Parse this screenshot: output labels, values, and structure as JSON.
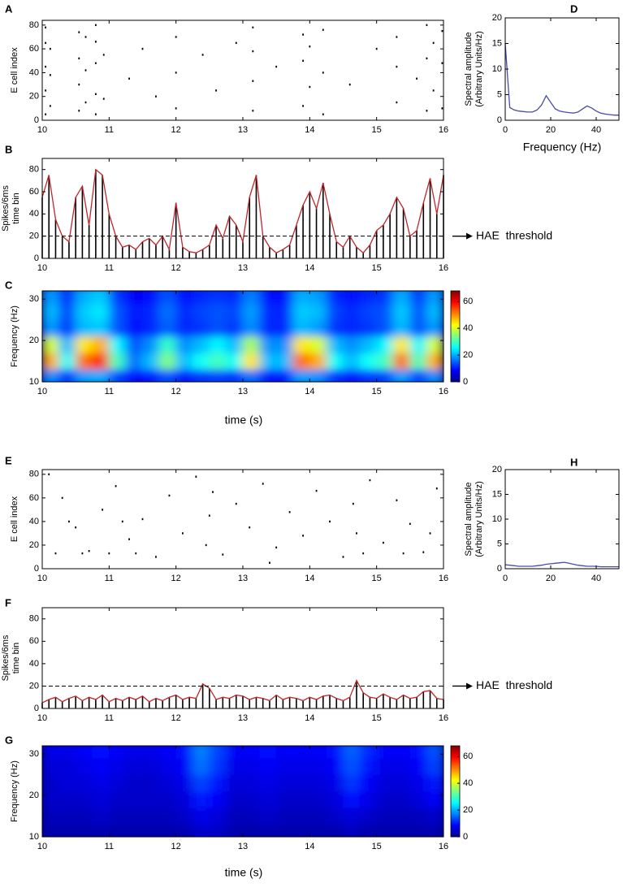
{
  "chart_data": [
    {
      "panel": "A",
      "type": "scatter",
      "ylabel": [
        "E cell index"
      ],
      "color": "#000000",
      "x": [
        10.05,
        10.05,
        10.05,
        10.05,
        10.05,
        10.12,
        10.12,
        10.12,
        10.55,
        10.55,
        10.55,
        10.55,
        10.65,
        10.65,
        10.65,
        10.8,
        10.8,
        10.8,
        10.8,
        10.8,
        10.92,
        10.92,
        11.3,
        11.5,
        11.7,
        12.0,
        12.0,
        12.0,
        12.4,
        12.6,
        12.9,
        13.15,
        13.15,
        13.15,
        13.15,
        13.5,
        13.9,
        13.9,
        13.9,
        14.0,
        14.0,
        14.2,
        14.2,
        14.2,
        14.6,
        15.0,
        15.3,
        15.3,
        15.3,
        15.6,
        15.75,
        15.75,
        15.75,
        15.85,
        15.85,
        15.98,
        15.98,
        15.98
      ],
      "values": [
        5,
        25,
        45,
        65,
        78,
        12,
        38,
        60,
        8,
        30,
        52,
        74,
        15,
        42,
        70,
        5,
        22,
        48,
        66,
        80,
        18,
        55,
        35,
        60,
        20,
        10,
        40,
        70,
        55,
        25,
        65,
        8,
        33,
        58,
        78,
        45,
        12,
        50,
        72,
        28,
        62,
        5,
        40,
        76,
        30,
        60,
        15,
        45,
        70,
        35,
        8,
        52,
        80,
        25,
        65,
        10,
        48,
        75
      ],
      "xlim": [
        10,
        16
      ],
      "xticks": [
        10,
        11,
        12,
        13,
        14,
        15,
        16
      ],
      "ylim": [
        0,
        84
      ],
      "yticks": [
        0,
        20,
        40,
        60,
        80
      ]
    },
    {
      "panel": "D",
      "type": "line",
      "ylabel": [
        "Spectral amplitude",
        "(Arbitrary Units/Hz)"
      ],
      "xlabel": "Frequency (Hz)",
      "color": "#4a4ab0",
      "x": [
        0,
        2,
        4,
        6,
        8,
        10,
        12,
        14,
        16,
        18,
        20,
        22,
        24,
        26,
        28,
        30,
        32,
        34,
        36,
        38,
        40,
        42,
        44,
        46,
        48,
        50
      ],
      "values": [
        15,
        2.5,
        2,
        1.8,
        1.7,
        1.6,
        1.6,
        2,
        3,
        4.8,
        3.5,
        2.2,
        1.8,
        1.6,
        1.5,
        1.4,
        1.6,
        2.2,
        2.8,
        2.4,
        1.8,
        1.4,
        1.2,
        1.1,
        1,
        1
      ],
      "xlim": [
        0,
        50
      ],
      "xticks": [
        0,
        20,
        40
      ],
      "ylim": [
        0,
        20
      ],
      "yticks": [
        0,
        5,
        10,
        15,
        20
      ]
    },
    {
      "panel": "B",
      "type": "line",
      "ylabel": [
        "Spikes/6ms",
        "time bin"
      ],
      "color": "#c0262b",
      "stem_color": "#000000",
      "threshold": 20,
      "threshold_label": "HAE  threshold",
      "x": [
        10,
        10.1,
        10.2,
        10.3,
        10.4,
        10.5,
        10.6,
        10.7,
        10.8,
        10.9,
        11,
        11.1,
        11.2,
        11.3,
        11.4,
        11.5,
        11.6,
        11.7,
        11.8,
        11.9,
        12,
        12.1,
        12.2,
        12.3,
        12.4,
        12.5,
        12.6,
        12.7,
        12.8,
        12.9,
        13,
        13.1,
        13.2,
        13.3,
        13.4,
        13.5,
        13.6,
        13.7,
        13.8,
        13.9,
        14,
        14.1,
        14.2,
        14.3,
        14.4,
        14.5,
        14.6,
        14.7,
        14.8,
        14.9,
        15,
        15.1,
        15.2,
        15.3,
        15.4,
        15.5,
        15.6,
        15.7,
        15.8,
        15.9,
        16
      ],
      "values": [
        55,
        75,
        35,
        20,
        15,
        55,
        65,
        30,
        80,
        75,
        40,
        20,
        10,
        12,
        8,
        15,
        18,
        12,
        20,
        8,
        50,
        10,
        6,
        5,
        8,
        12,
        30,
        18,
        38,
        30,
        15,
        55,
        75,
        20,
        10,
        5,
        8,
        12,
        30,
        48,
        60,
        45,
        68,
        40,
        15,
        10,
        20,
        10,
        5,
        12,
        25,
        30,
        40,
        55,
        45,
        20,
        25,
        50,
        72,
        40,
        75
      ],
      "xlim": [
        10,
        16
      ],
      "xticks": [
        10,
        11,
        12,
        13,
        14,
        15,
        16
      ],
      "ylim": [
        0,
        90
      ],
      "yticks": [
        0,
        20,
        40,
        60,
        80
      ]
    },
    {
      "panel": "C",
      "type": "heatmap",
      "ylabel": [
        "Frequency (Hz)"
      ],
      "xlabel": "time (s)",
      "colormap": "jet",
      "x": [
        10.125,
        10.375,
        10.625,
        10.875,
        11.125,
        11.375,
        11.625,
        11.875,
        12.125,
        12.375,
        12.625,
        12.875,
        13.125,
        13.375,
        13.625,
        13.875,
        14.125,
        14.375,
        14.625,
        14.875,
        15.125,
        15.375,
        15.625,
        15.875
      ],
      "y": [
        11,
        15,
        19,
        23,
        27,
        31
      ],
      "z": [
        [
          18,
          12,
          19,
          20,
          13,
          9,
          10,
          14,
          10,
          12,
          13,
          12,
          16,
          10,
          10,
          19,
          18,
          12,
          10,
          12,
          13,
          19,
          13,
          18
        ],
        [
          48,
          26,
          52,
          57,
          30,
          16,
          21,
          34,
          21,
          26,
          30,
          26,
          44,
          21,
          21,
          52,
          48,
          26,
          21,
          26,
          30,
          52,
          30,
          48
        ],
        [
          40,
          21,
          44,
          48,
          25,
          14,
          18,
          29,
          18,
          21,
          25,
          21,
          37,
          18,
          18,
          44,
          40,
          21,
          18,
          21,
          25,
          44,
          25,
          40
        ],
        [
          19,
          12,
          21,
          22,
          14,
          9,
          11,
          15,
          11,
          12,
          14,
          12,
          18,
          11,
          11,
          21,
          19,
          12,
          11,
          12,
          14,
          21,
          14,
          19
        ],
        [
          21,
          13,
          22,
          24,
          14,
          10,
          11,
          16,
          11,
          13,
          14,
          13,
          19,
          11,
          11,
          22,
          21,
          13,
          11,
          13,
          14,
          22,
          14,
          21
        ],
        [
          19,
          11,
          20,
          22,
          12,
          8,
          9,
          14,
          9,
          11,
          12,
          11,
          17,
          9,
          9,
          20,
          19,
          11,
          9,
          11,
          12,
          20,
          12,
          19
        ]
      ],
      "zlim": [
        0,
        68
      ],
      "zticks": [
        0,
        20,
        40,
        60
      ],
      "xlim": [
        10,
        16
      ],
      "xticks": [
        10,
        11,
        12,
        13,
        14,
        15,
        16
      ],
      "ylim": [
        10,
        32
      ],
      "yticks": [
        10,
        20,
        30
      ]
    },
    {
      "panel": "E",
      "type": "scatter",
      "ylabel": [
        "E cell index"
      ],
      "color": "#000000",
      "x": [
        10.1,
        10.3,
        10.5,
        10.7,
        10.9,
        11.1,
        11.3,
        11.5,
        11.7,
        11.9,
        12.1,
        12.3,
        12.45,
        12.5,
        12.55,
        12.7,
        12.9,
        13.1,
        13.3,
        13.5,
        13.7,
        13.9,
        14.1,
        14.3,
        14.5,
        14.65,
        14.7,
        14.9,
        15.1,
        15.3,
        15.5,
        15.7,
        15.9,
        10.2,
        10.6,
        11,
        11.4,
        14.8,
        15.4,
        10.4,
        11.2,
        13.4,
        15.8
      ],
      "values": [
        80,
        60,
        35,
        15,
        50,
        70,
        25,
        42,
        10,
        62,
        30,
        78,
        20,
        45,
        65,
        12,
        55,
        35,
        72,
        18,
        48,
        28,
        66,
        40,
        10,
        55,
        30,
        75,
        22,
        58,
        38,
        14,
        68,
        13,
        13,
        13,
        13,
        13,
        13,
        40,
        40,
        5,
        30
      ],
      "xlim": [
        10,
        16
      ],
      "xticks": [
        10,
        11,
        12,
        13,
        14,
        15,
        16
      ],
      "ylim": [
        0,
        84
      ],
      "yticks": [
        0,
        20,
        40,
        60,
        80
      ]
    },
    {
      "panel": "H",
      "type": "line",
      "ylabel": [
        "Spectral amplitude",
        "(Arbitrary Units/Hz)"
      ],
      "color": "#4a4ab0",
      "x": [
        0,
        2,
        4,
        6,
        8,
        10,
        12,
        14,
        16,
        18,
        20,
        22,
        24,
        26,
        28,
        30,
        32,
        34,
        36,
        38,
        40,
        42,
        44,
        46,
        48,
        50
      ],
      "values": [
        0.8,
        0.7,
        0.6,
        0.5,
        0.5,
        0.5,
        0.5,
        0.6,
        0.7,
        0.9,
        1,
        1.1,
        1.2,
        1.3,
        1.1,
        0.9,
        0.7,
        0.6,
        0.5,
        0.5,
        0.5,
        0.4,
        0.4,
        0.4,
        0.4,
        0.4
      ],
      "xlim": [
        0,
        50
      ],
      "xticks": [
        0,
        20,
        40
      ],
      "ylim": [
        0,
        20
      ],
      "yticks": [
        0,
        5,
        10,
        15,
        20
      ]
    },
    {
      "panel": "F",
      "type": "line",
      "ylabel": [
        "Spikes/6ms",
        "time bin"
      ],
      "color": "#c0262b",
      "stem_color": "#000000",
      "threshold": 20,
      "threshold_label": "HAE  threshold",
      "x": [
        10,
        10.1,
        10.2,
        10.3,
        10.4,
        10.5,
        10.6,
        10.7,
        10.8,
        10.9,
        11,
        11.1,
        11.2,
        11.3,
        11.4,
        11.5,
        11.6,
        11.7,
        11.8,
        11.9,
        12,
        12.1,
        12.2,
        12.3,
        12.4,
        12.5,
        12.6,
        12.7,
        12.8,
        12.9,
        13,
        13.1,
        13.2,
        13.3,
        13.4,
        13.5,
        13.6,
        13.7,
        13.8,
        13.9,
        14,
        14.1,
        14.2,
        14.3,
        14.4,
        14.5,
        14.6,
        14.7,
        14.8,
        14.9,
        15,
        15.1,
        15.2,
        15.3,
        15.4,
        15.5,
        15.6,
        15.7,
        15.8,
        15.9,
        16
      ],
      "values": [
        5,
        8,
        10,
        6,
        9,
        11,
        7,
        10,
        8,
        12,
        6,
        9,
        7,
        10,
        8,
        11,
        6,
        9,
        7,
        10,
        12,
        8,
        10,
        9,
        22,
        18,
        8,
        10,
        9,
        12,
        11,
        8,
        10,
        9,
        7,
        12,
        8,
        10,
        9,
        7,
        10,
        8,
        11,
        12,
        9,
        7,
        10,
        25,
        14,
        10,
        9,
        13,
        10,
        8,
        12,
        9,
        10,
        15,
        16,
        9,
        8
      ],
      "xlim": [
        10,
        16
      ],
      "xticks": [
        10,
        11,
        12,
        13,
        14,
        15,
        16
      ],
      "ylim": [
        0,
        90
      ],
      "yticks": [
        0,
        20,
        40,
        60,
        80
      ]
    },
    {
      "panel": "G",
      "type": "heatmap",
      "ylabel": [
        "Frequency (Hz)"
      ],
      "xlabel": "time (s)",
      "colormap": "jet",
      "x": [
        10.125,
        10.375,
        10.625,
        10.875,
        11.125,
        11.375,
        11.625,
        11.875,
        12.125,
        12.375,
        12.625,
        12.875,
        13.125,
        13.375,
        13.625,
        13.875,
        14.125,
        14.375,
        14.625,
        14.875,
        15.125,
        15.375,
        15.625,
        15.875
      ],
      "y": [
        11,
        15,
        19,
        23,
        27,
        31
      ],
      "z": [
        [
          3,
          3,
          3,
          3,
          3,
          3,
          3,
          3,
          3,
          5,
          5,
          3,
          3,
          3,
          3,
          3,
          3,
          3,
          4,
          3,
          3,
          3,
          3,
          3
        ],
        [
          4,
          4,
          4,
          5,
          4,
          4,
          4,
          4,
          5,
          7,
          6,
          4,
          4,
          5,
          4,
          4,
          4,
          5,
          6,
          5,
          4,
          4,
          4,
          5
        ],
        [
          5,
          5,
          5,
          6,
          5,
          5,
          5,
          5,
          6,
          10,
          8,
          5,
          5,
          6,
          5,
          5,
          5,
          6,
          9,
          7,
          5,
          5,
          6,
          8
        ],
        [
          5,
          6,
          6,
          7,
          6,
          5,
          5,
          6,
          7,
          13,
          10,
          6,
          6,
          7,
          6,
          6,
          6,
          7,
          12,
          8,
          6,
          6,
          7,
          10
        ],
        [
          6,
          6,
          7,
          8,
          7,
          6,
          6,
          7,
          8,
          16,
          12,
          7,
          7,
          8,
          7,
          7,
          7,
          8,
          14,
          10,
          7,
          7,
          8,
          13
        ],
        [
          7,
          7,
          8,
          9,
          8,
          7,
          7,
          8,
          9,
          17,
          13,
          8,
          8,
          9,
          8,
          8,
          8,
          9,
          15,
          11,
          8,
          8,
          9,
          14
        ]
      ],
      "zlim": [
        0,
        68
      ],
      "zticks": [
        0,
        20,
        40,
        60
      ],
      "xlim": [
        10,
        16
      ],
      "xticks": [
        10,
        11,
        12,
        13,
        14,
        15,
        16
      ],
      "ylim": [
        10,
        32
      ],
      "yticks": [
        10,
        20,
        30
      ]
    }
  ]
}
